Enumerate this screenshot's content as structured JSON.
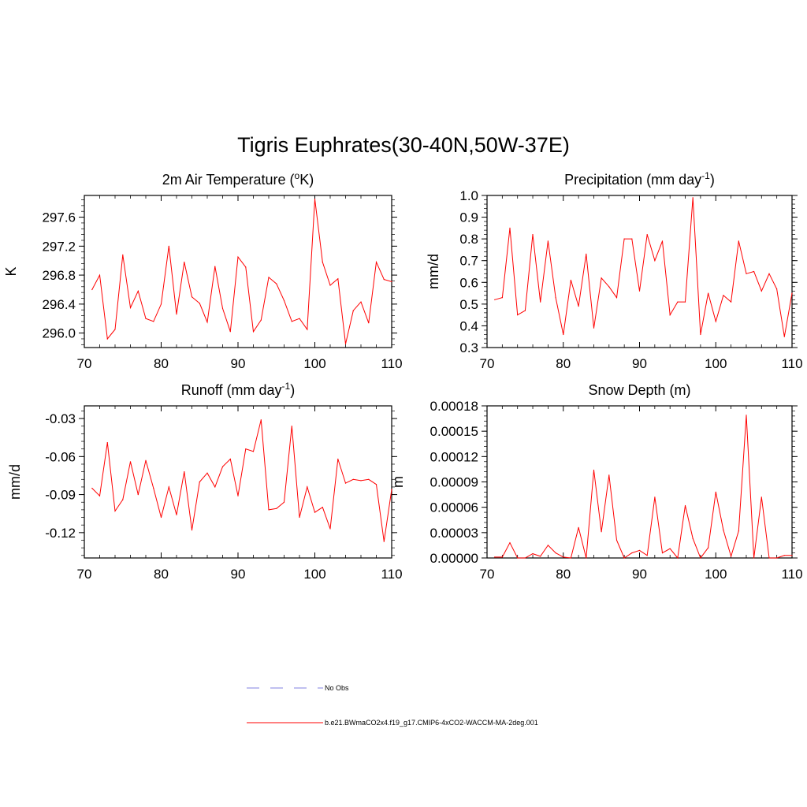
{
  "figure": {
    "title": "Tigris Euphrates(30-40N,50W-37E)"
  },
  "chart_data": [
    {
      "type": "line",
      "title": "2m Air Temperature (°K)",
      "title_parts": {
        "pre": "2m Air Temperature (",
        "sup": "o",
        "post": "K)"
      },
      "xlabel": "",
      "ylabel": "K",
      "xlim": [
        70,
        110
      ],
      "ylim": [
        295.8,
        297.9
      ],
      "xticks": [
        70,
        80,
        90,
        100,
        110
      ],
      "xtick_labels": [
        "70",
        "80",
        "90",
        "100",
        "110"
      ],
      "yticks": [
        296.0,
        296.4,
        296.8,
        297.2,
        297.6
      ],
      "ytick_labels": [
        "296.0",
        "296.4",
        "296.8",
        "297.2",
        "297.6"
      ],
      "yminor_step": 0.08,
      "series": [
        {
          "name": "b.e21.BWmaCO2x4.f19_g17.CMIP6-4xCO2-WACCM-MA-2deg.001",
          "color": "#ff0000",
          "x": [
            71,
            72,
            73,
            74,
            75,
            76,
            77,
            78,
            79,
            80,
            81,
            82,
            83,
            84,
            85,
            86,
            87,
            88,
            89,
            90,
            91,
            92,
            93,
            94,
            95,
            96,
            97,
            98,
            99,
            100,
            101,
            102,
            103,
            104,
            105,
            106,
            107,
            108,
            109,
            110
          ],
          "values": [
            296.6,
            296.8,
            295.92,
            296.05,
            297.08,
            296.35,
            296.58,
            296.2,
            296.16,
            296.4,
            297.2,
            296.26,
            296.98,
            296.5,
            296.41,
            296.15,
            296.92,
            296.34,
            296.02,
            297.05,
            296.91,
            296.02,
            296.18,
            296.77,
            296.68,
            296.45,
            296.16,
            296.2,
            296.05,
            297.85,
            296.98,
            296.66,
            296.75,
            295.85,
            296.31,
            296.43,
            296.14,
            296.98,
            296.74,
            296.71
          ]
        }
      ]
    },
    {
      "type": "line",
      "title": "Precipitation (mm day-1)",
      "title_parts": {
        "pre": "Precipitation (mm day",
        "sup": "-1",
        "post": ")"
      },
      "xlabel": "",
      "ylabel": "mm/d",
      "xlim": [
        70,
        110
      ],
      "ylim": [
        0.3,
        1.0
      ],
      "xticks": [
        70,
        80,
        90,
        100,
        110
      ],
      "xtick_labels": [
        "70",
        "80",
        "90",
        "100",
        "110"
      ],
      "yticks": [
        0.3,
        0.4,
        0.5,
        0.6,
        0.7,
        0.8,
        0.9,
        1.0
      ],
      "ytick_labels": [
        "0.3",
        "0.4",
        "0.5",
        "0.6",
        "0.7",
        "0.8",
        "0.9",
        "1.0"
      ],
      "yminor_step": 0.02,
      "series": [
        {
          "name": "b.e21.BWmaCO2x4.f19_g17.CMIP6-4xCO2-WACCM-MA-2deg.001",
          "color": "#ff0000",
          "x": [
            71,
            72,
            73,
            74,
            75,
            76,
            77,
            78,
            79,
            80,
            81,
            82,
            83,
            84,
            85,
            86,
            87,
            88,
            89,
            90,
            91,
            92,
            93,
            94,
            95,
            96,
            97,
            98,
            99,
            100,
            101,
            102,
            103,
            104,
            105,
            106,
            107,
            108,
            109,
            110
          ],
          "values": [
            0.52,
            0.53,
            0.85,
            0.45,
            0.47,
            0.82,
            0.51,
            0.79,
            0.53,
            0.36,
            0.61,
            0.49,
            0.73,
            0.39,
            0.62,
            0.58,
            0.53,
            0.8,
            0.8,
            0.56,
            0.82,
            0.7,
            0.79,
            0.45,
            0.51,
            0.51,
            0.99,
            0.36,
            0.55,
            0.42,
            0.54,
            0.51,
            0.79,
            0.64,
            0.65,
            0.56,
            0.64,
            0.57,
            0.35,
            0.55
          ]
        }
      ]
    },
    {
      "type": "line",
      "title": "Runoff (mm day-1)",
      "title_parts": {
        "pre": "Runoff (mm day",
        "sup": "-1",
        "post": ")"
      },
      "xlabel": "",
      "ylabel": "mm/d",
      "xlim": [
        70,
        110
      ],
      "ylim": [
        -0.14,
        -0.02
      ],
      "xticks": [
        70,
        80,
        90,
        100,
        110
      ],
      "xtick_labels": [
        "70",
        "80",
        "90",
        "100",
        "110"
      ],
      "yticks": [
        -0.12,
        -0.09,
        -0.06,
        -0.03
      ],
      "ytick_labels": [
        "-0.12",
        "-0.09",
        "-0.06",
        "-0.03"
      ],
      "yminor_step": 0.006,
      "series": [
        {
          "name": "b.e21.BWmaCO2x4.f19_g17.CMIP6-4xCO2-WACCM-MA-2deg.001",
          "color": "#ff0000",
          "x": [
            71,
            72,
            73,
            74,
            75,
            76,
            77,
            78,
            79,
            80,
            81,
            82,
            83,
            84,
            85,
            86,
            87,
            88,
            89,
            90,
            91,
            92,
            93,
            94,
            95,
            96,
            97,
            98,
            99,
            100,
            101,
            102,
            103,
            104,
            105,
            106,
            107,
            108,
            109,
            110
          ],
          "values": [
            -0.085,
            -0.091,
            -0.049,
            -0.103,
            -0.094,
            -0.064,
            -0.09,
            -0.063,
            -0.085,
            -0.108,
            -0.084,
            -0.106,
            -0.072,
            -0.118,
            -0.08,
            -0.073,
            -0.084,
            -0.068,
            -0.062,
            -0.091,
            -0.054,
            -0.056,
            -0.031,
            -0.102,
            -0.101,
            -0.096,
            -0.036,
            -0.108,
            -0.084,
            -0.104,
            -0.1,
            -0.117,
            -0.062,
            -0.081,
            -0.078,
            -0.079,
            -0.078,
            -0.082,
            -0.127,
            -0.086
          ]
        }
      ]
    },
    {
      "type": "line",
      "title": "Snow Depth (m)",
      "title_parts": {
        "pre": "Snow Depth (m)",
        "sup": "",
        "post": ""
      },
      "xlabel": "",
      "ylabel": "m",
      "xlim": [
        70,
        110
      ],
      "ylim": [
        0,
        0.00018
      ],
      "xticks": [
        70,
        80,
        90,
        100,
        110
      ],
      "xtick_labels": [
        "70",
        "80",
        "90",
        "100",
        "110"
      ],
      "yticks": [
        0,
        3e-05,
        6e-05,
        9e-05,
        0.00012,
        0.00015,
        0.00018
      ],
      "ytick_labels": [
        "0.00000",
        "0.00003",
        "0.00006",
        "0.00009",
        "0.00012",
        "0.00015",
        "0.00018"
      ],
      "yminor_step": 6e-06,
      "series": [
        {
          "name": "b.e21.BWmaCO2x4.f19_g17.CMIP6-4xCO2-WACCM-MA-2deg.001",
          "color": "#ff0000",
          "x": [
            71,
            72,
            73,
            74,
            75,
            76,
            77,
            78,
            79,
            80,
            81,
            82,
            83,
            84,
            85,
            86,
            87,
            88,
            89,
            90,
            91,
            92,
            93,
            94,
            95,
            96,
            97,
            98,
            99,
            100,
            101,
            102,
            103,
            104,
            105,
            106,
            107,
            108,
            109,
            110
          ],
          "values": [
            1e-06,
            1e-06,
            1.8e-05,
            0.0,
            0.0,
            5e-06,
            2e-06,
            1.5e-05,
            6e-06,
            1e-06,
            0.0,
            3.6e-05,
            0.0,
            0.000104,
            3.1e-05,
            9.8e-05,
            2.1e-05,
            0.0,
            6e-06,
            9e-06,
            3e-06,
            7.2e-05,
            6e-06,
            1.1e-05,
            0.0,
            6.2e-05,
            2.3e-05,
            0.0,
            1.2e-05,
            7.8e-05,
            3.3e-05,
            2e-06,
            3.2e-05,
            0.000169,
            0.0,
            7.2e-05,
            0.0,
            0.0,
            3e-06,
            3e-06
          ]
        }
      ]
    }
  ],
  "legend": {
    "items": [
      {
        "label": "No Obs",
        "style": "dashed",
        "color": "#9a9ae6"
      },
      {
        "label": "b.e21.BWmaCO2x4.f19_g17.CMIP6-4xCO2-WACCM-MA-2deg.001",
        "style": "solid",
        "color": "#ff0000"
      }
    ]
  }
}
